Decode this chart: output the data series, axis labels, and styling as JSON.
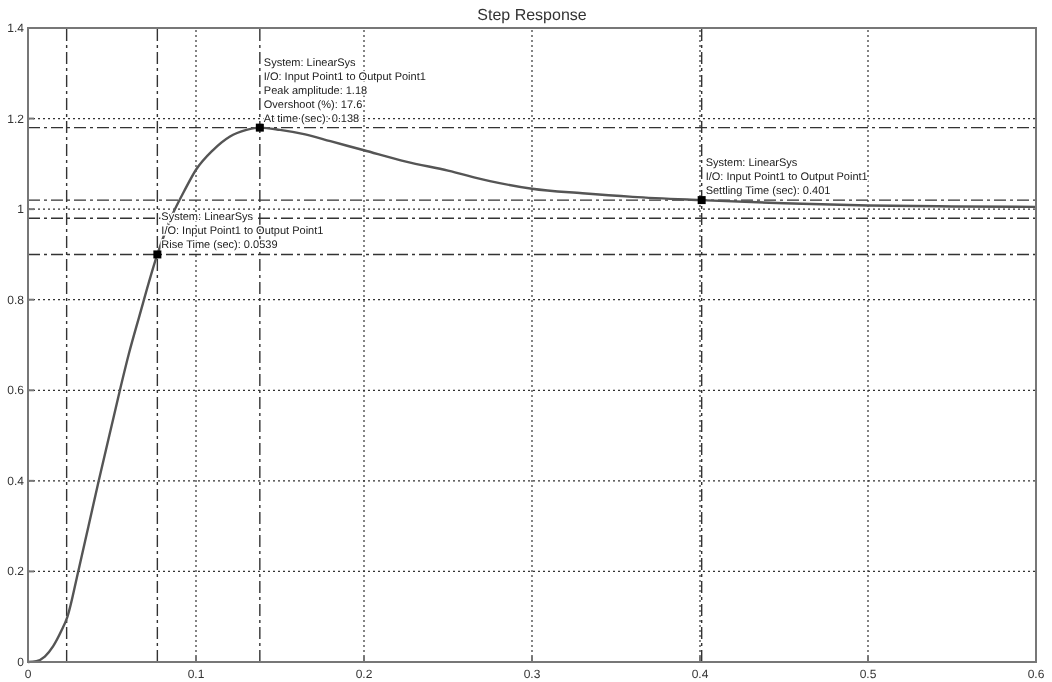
{
  "chart_data": {
    "type": "line",
    "title": "Step Response",
    "xlim": [
      0,
      0.6
    ],
    "xticks": [
      0,
      0.1,
      0.2,
      0.3,
      0.4,
      0.5,
      0.6
    ],
    "ylim": [
      0,
      1.4
    ],
    "yticks": [
      0,
      0.2,
      0.4,
      0.6,
      0.8,
      1,
      1.2,
      1.4
    ],
    "grid": true,
    "marker": "none",
    "line_style": "solid",
    "series": [
      {
        "color": "#555555",
        "x": [
          0,
          0.005,
          0.01,
          0.015,
          0.02,
          0.0233,
          0.0299,
          0.036,
          0.0421,
          0.0484,
          0.0547,
          0.06,
          0.066,
          0.077,
          0.085,
          0.093,
          0.1,
          0.11,
          0.12,
          0.13,
          0.138,
          0.15,
          0.165,
          0.18,
          0.2,
          0.225,
          0.25,
          0.275,
          0.3,
          0.33,
          0.36,
          0.4,
          0.45,
          0.5,
          0.55,
          0.6
        ],
        "values": [
          0,
          0.002,
          0.012,
          0.035,
          0.07,
          0.098,
          0.2,
          0.3,
          0.4,
          0.5,
          0.6,
          0.68,
          0.76,
          0.9,
          0.98,
          1.04,
          1.087,
          1.13,
          1.16,
          1.175,
          1.18,
          1.175,
          1.165,
          1.15,
          1.13,
          1.105,
          1.085,
          1.062,
          1.045,
          1.035,
          1.027,
          1.02,
          1.013,
          1.008,
          1.006,
          1.005
        ]
      }
    ],
    "ref_lines": [
      {
        "axis": "x",
        "value": 0.023,
        "line_style": "dashdot"
      },
      {
        "axis": "x",
        "value": 0.077,
        "line_style": "dashdot"
      },
      {
        "axis": "x",
        "value": 0.138,
        "line_style": "dashdot"
      },
      {
        "axis": "x",
        "value": 0.401,
        "line_style": "dashdot"
      },
      {
        "axis": "y",
        "value": 0.9,
        "line_style": "dashdot"
      },
      {
        "axis": "y",
        "value": 1.18,
        "line_style": "dashdot"
      },
      {
        "axis": "y",
        "value": 1.02,
        "line_style": "dashdot"
      },
      {
        "axis": "y",
        "value": 0.98,
        "line_style": "dashdot"
      }
    ],
    "annotations": [
      {
        "text": "System: LinearSys\nI/O: Input Point1 to Output Point1\nRise Time (sec): 0.0539",
        "x": 0.077,
        "y": 0.9
      },
      {
        "text": "System: LinearSys\nI/O: Input Point1 to Output Point1\nPeak amplitude: 1.18\nOvershoot (%): 17.6\nAt time (sec): 0.138",
        "x": 0.138,
        "y": 1.18
      },
      {
        "text": "System: LinearSys\nI/O: Input Point1 to Output Point1\nSettling Time (sec): 0.401",
        "x": 0.401,
        "y": 1.02
      }
    ]
  }
}
